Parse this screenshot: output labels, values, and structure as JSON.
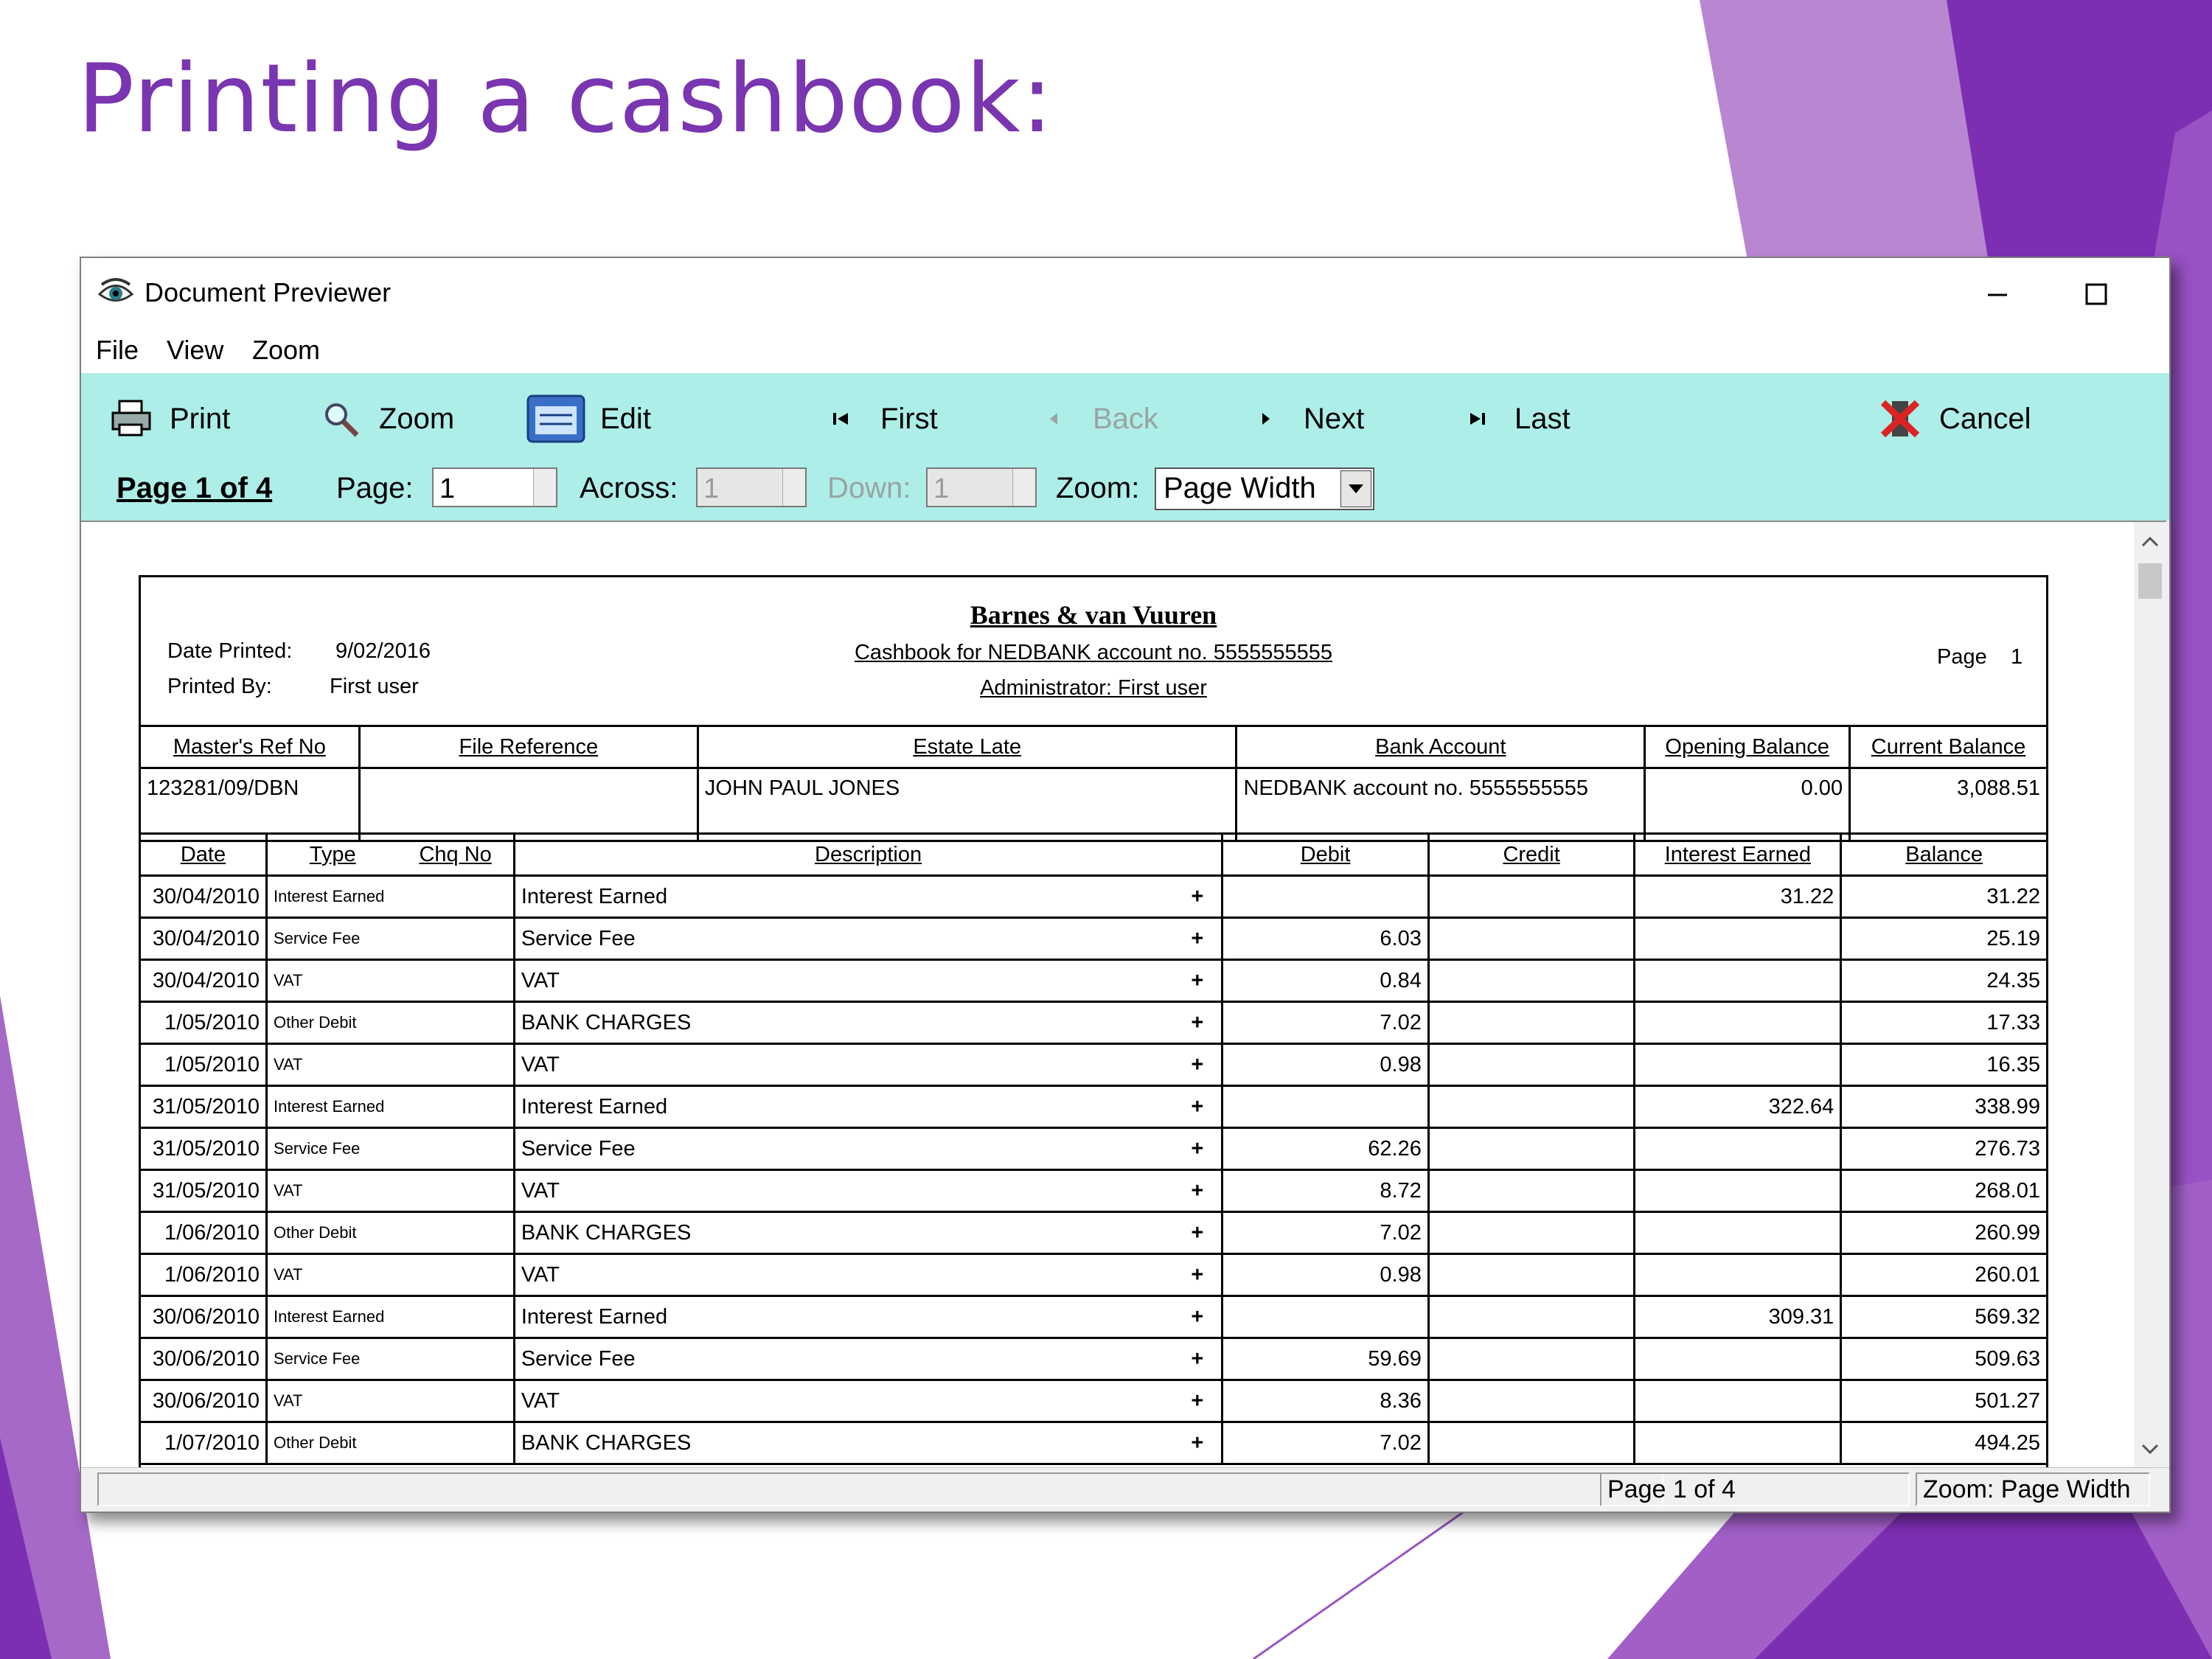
{
  "slide": {
    "title": "Printing a cashbook:"
  },
  "colors": {
    "purple_dark": "#7d2fb3",
    "purple_mid": "#9b56c4",
    "purple_light": "#b987d2",
    "toolbar_bg": "#aeeee8",
    "title_purple": "#7a35b0"
  },
  "window": {
    "title": "Document Previewer",
    "icon": "eye-icon",
    "minimize_icon": "minimize-icon",
    "maximize_icon": "maximize-icon",
    "close_icon": "close-icon"
  },
  "menu": [
    {
      "label": "File"
    },
    {
      "label": "View"
    },
    {
      "label": "Zoom"
    }
  ],
  "toolbar": {
    "print": {
      "label": "Print",
      "icon": "printer-icon"
    },
    "zoom": {
      "label": "Zoom",
      "icon": "magnifier-icon"
    },
    "edit": {
      "label": "Edit",
      "icon": "edit-window-icon"
    },
    "first": {
      "label": "First",
      "icon": "first-page-icon"
    },
    "back": {
      "label": "Back",
      "icon": "back-arrow-icon",
      "enabled": false
    },
    "next": {
      "label": "Next",
      "icon": "next-arrow-icon"
    },
    "last": {
      "label": "Last",
      "icon": "last-page-icon"
    },
    "cancel": {
      "label": "Cancel",
      "icon": "cancel-icon"
    }
  },
  "pagebar": {
    "page_info": "Page 1 of 4",
    "page_label": "Page:",
    "page_value": "1",
    "across_label": "Across:",
    "across_value": "1",
    "down_label": "Down:",
    "down_value": "1",
    "zoom_label": "Zoom:",
    "zoom_value": "Page Width"
  },
  "report": {
    "firm": "Barnes & van Vuuren",
    "subtitle": "Cashbook for NEDBANK account no. 5555555555",
    "admin": "Administrator: First user",
    "date_printed_label": "Date Printed:",
    "date_printed": "9/02/2016",
    "printed_by_label": "Printed By:",
    "printed_by": "First user",
    "page_label": "Page",
    "page_no": "1",
    "info_headers": [
      "Master's Ref No",
      "File Reference",
      "Estate Late",
      "Bank Account",
      "Opening Balance",
      "Current Balance"
    ],
    "info_values": [
      "123281/09/DBN",
      "",
      "JOHN PAUL JONES",
      "NEDBANK account no. 5555555555",
      "0.00",
      "3,088.51"
    ],
    "tx_headers": [
      "Date",
      "Type",
      "Chq No",
      "Description",
      "Debit",
      "Credit",
      "Interest Earned",
      "Balance"
    ],
    "rows": [
      {
        "date": "30/04/2010",
        "type": "Interest Earned",
        "desc": "Interest Earned",
        "mark": "+",
        "debit": "",
        "credit": "",
        "interest": "31.22",
        "balance": "31.22"
      },
      {
        "date": "30/04/2010",
        "type": "Service Fee",
        "desc": "Service Fee",
        "mark": "+",
        "debit": "6.03",
        "credit": "",
        "interest": "",
        "balance": "25.19"
      },
      {
        "date": "30/04/2010",
        "type": "VAT",
        "desc": "VAT",
        "mark": "+",
        "debit": "0.84",
        "credit": "",
        "interest": "",
        "balance": "24.35"
      },
      {
        "date": "1/05/2010",
        "type": "Other Debit",
        "desc": "BANK CHARGES",
        "mark": "+",
        "debit": "7.02",
        "credit": "",
        "interest": "",
        "balance": "17.33"
      },
      {
        "date": "1/05/2010",
        "type": "VAT",
        "desc": "VAT",
        "mark": "+",
        "debit": "0.98",
        "credit": "",
        "interest": "",
        "balance": "16.35"
      },
      {
        "date": "31/05/2010",
        "type": "Interest Earned",
        "desc": "Interest Earned",
        "mark": "+",
        "debit": "",
        "credit": "",
        "interest": "322.64",
        "balance": "338.99"
      },
      {
        "date": "31/05/2010",
        "type": "Service Fee",
        "desc": "Service Fee",
        "mark": "+",
        "debit": "62.26",
        "credit": "",
        "interest": "",
        "balance": "276.73"
      },
      {
        "date": "31/05/2010",
        "type": "VAT",
        "desc": "VAT",
        "mark": "+",
        "debit": "8.72",
        "credit": "",
        "interest": "",
        "balance": "268.01"
      },
      {
        "date": "1/06/2010",
        "type": "Other Debit",
        "desc": "BANK CHARGES",
        "mark": "+",
        "debit": "7.02",
        "credit": "",
        "interest": "",
        "balance": "260.99"
      },
      {
        "date": "1/06/2010",
        "type": "VAT",
        "desc": "VAT",
        "mark": "+",
        "debit": "0.98",
        "credit": "",
        "interest": "",
        "balance": "260.01"
      },
      {
        "date": "30/06/2010",
        "type": "Interest Earned",
        "desc": "Interest Earned",
        "mark": "+",
        "debit": "",
        "credit": "",
        "interest": "309.31",
        "balance": "569.32"
      },
      {
        "date": "30/06/2010",
        "type": "Service Fee",
        "desc": "Service Fee",
        "mark": "+",
        "debit": "59.69",
        "credit": "",
        "interest": "",
        "balance": "509.63"
      },
      {
        "date": "30/06/2010",
        "type": "VAT",
        "desc": "VAT",
        "mark": "+",
        "debit": "8.36",
        "credit": "",
        "interest": "",
        "balance": "501.27"
      },
      {
        "date": "1/07/2010",
        "type": "Other Debit",
        "desc": "BANK CHARGES",
        "mark": "+",
        "debit": "7.02",
        "credit": "",
        "interest": "",
        "balance": "494.25"
      }
    ]
  },
  "status": {
    "page": "Page 1 of 4",
    "zoom": "Zoom: Page Width"
  }
}
